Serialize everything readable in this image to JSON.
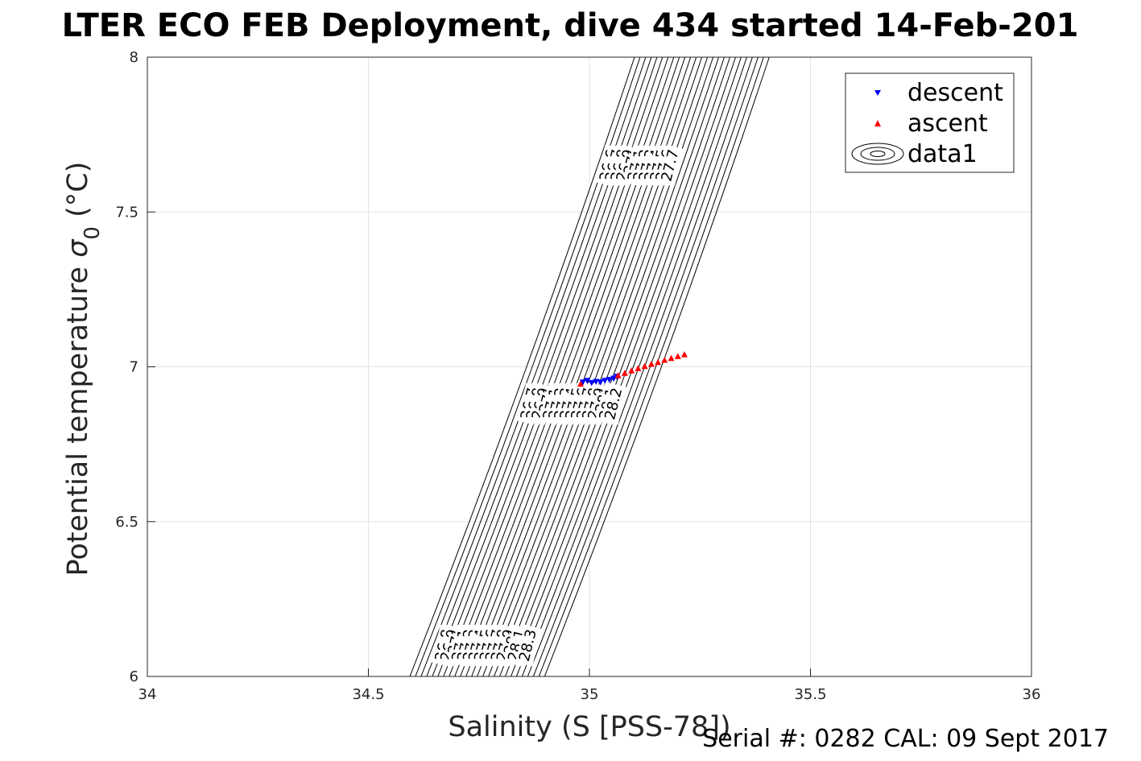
{
  "chart_data": {
    "type": "scatter",
    "title": "LTER ECO FEB Deployment, dive 434 started 14-Feb-201",
    "xlabel": "Salinity (S [PSS-78])",
    "ylabel": "Potential temperature",
    "ylabel_symbol": "σ",
    "ylabel_subscript": "0",
    "ylabel_unit": "(°C)",
    "xlim": [
      34,
      36
    ],
    "ylim": [
      6,
      8
    ],
    "xticks": [
      34,
      34.5,
      35,
      35.5,
      36
    ],
    "yticks": [
      6,
      6.5,
      7,
      7.5,
      8
    ],
    "xtick_labels": [
      "34",
      "34.5",
      "35",
      "35.5",
      "36"
    ],
    "ytick_labels": [
      "6",
      "6.5",
      "7",
      "7.5",
      "8"
    ],
    "grid": true,
    "legend_position": "top-right",
    "contour_labels_bottom": [
      "26.8",
      "26.9",
      "27",
      "27.1",
      "27.2",
      "27.3",
      "27.4",
      "27.5",
      "27.6",
      "27.7",
      "27.8",
      "27.9",
      "28",
      "28.1",
      "28.3"
    ],
    "contour_labels_middle": [
      "26.7",
      "26.8",
      "26.9",
      "27",
      "27.1",
      "27.2",
      "27.3",
      "27.4",
      "27.5",
      "27.6",
      "27.7",
      "27.8",
      "27.9",
      "28",
      "28.1",
      "28.2"
    ],
    "contour_labels_top": [
      "26.6",
      "26.7",
      "26.8",
      "26.9",
      "27",
      "27.1",
      "27.2",
      "27.3",
      "27.4",
      "27.5",
      "27.6",
      "27.7"
    ],
    "series": [
      {
        "name": "descent",
        "marker": "triangle-down",
        "color": "#0000ff",
        "x": [
          34.985,
          34.995,
          35.005,
          35.015,
          35.025,
          35.035,
          35.045,
          35.055,
          35.062
        ],
        "y": [
          6.95,
          6.955,
          6.948,
          6.952,
          6.95,
          6.955,
          6.958,
          6.962,
          6.968
        ]
      },
      {
        "name": "ascent",
        "marker": "triangle-up",
        "color": "#ff0000",
        "x": [
          34.98,
          35.065,
          35.08,
          35.095,
          35.11,
          35.125,
          35.14,
          35.155,
          35.17,
          35.185,
          35.2,
          35.215
        ],
        "y": [
          6.945,
          6.972,
          6.98,
          6.988,
          6.995,
          7.002,
          7.009,
          7.015,
          7.022,
          7.028,
          7.034,
          7.04
        ]
      },
      {
        "name": "data1",
        "marker": "contour",
        "color": "#000000"
      }
    ]
  },
  "footer": "Serial #: 0282  CAL: 09 Sept 2017"
}
